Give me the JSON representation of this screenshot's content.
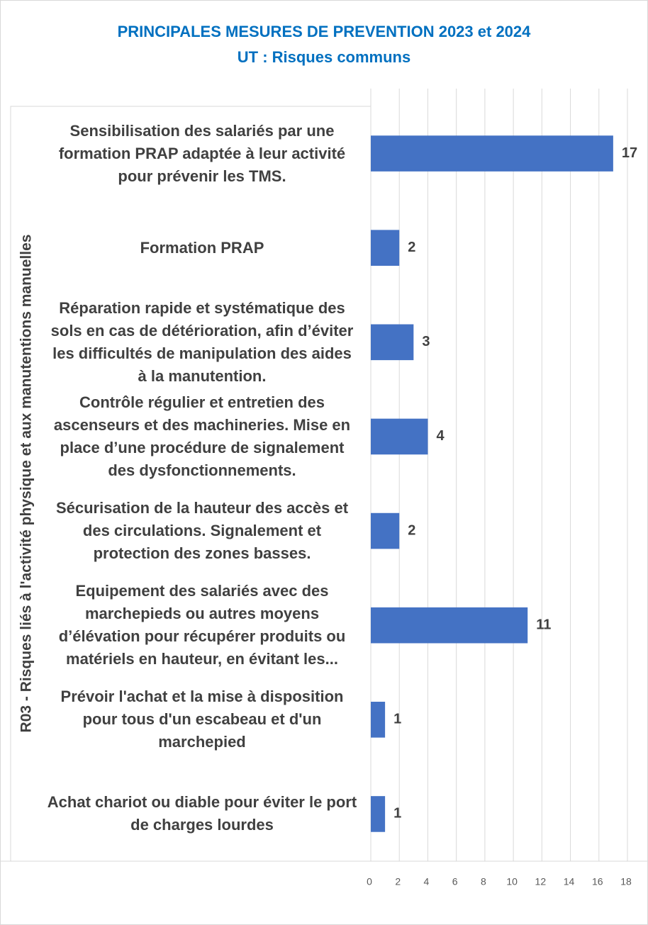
{
  "chart_data": {
    "type": "barh",
    "title": "PRINCIPALES MESURES DE PREVENTION 2023 et 2024",
    "subtitle": "UT : Risques communs",
    "ylabel": "R03 - Risques liés à l'activité physique et aux manutentions manuelles",
    "categories": [
      "Sensibilisation des salariés par une formation PRAP adaptée à leur activité pour prévenir les TMS.",
      "Formation PRAP",
      "Réparation rapide et systématique des sols en cas de détérioration, afin d’éviter les difficultés de manipulation des aides à la manutention.",
      "Contrôle régulier et entretien des ascenseurs et des machineries. Mise en place d’une procédure de signalement des dysfonctionnements.",
      "Sécurisation de la hauteur des accès et des circulations. Signalement et protection des zones basses.",
      "Equipement des salariés avec des marchepieds ou autres moyens d’élévation pour récupérer produits ou matériels en hauteur, en évitant les...",
      "Prévoir l'achat et la mise à disposition pour tous d'un escabeau et d'un marchepied",
      "Achat chariot ou diable pour éviter le port de charges lourdes"
    ],
    "values": [
      17,
      2,
      3,
      4,
      2,
      11,
      1,
      1
    ],
    "color": "#4472c4",
    "xlim": [
      0,
      18
    ],
    "xticks": [
      0,
      2,
      4,
      6,
      8,
      10,
      12,
      14,
      16,
      18
    ],
    "grid": true
  }
}
